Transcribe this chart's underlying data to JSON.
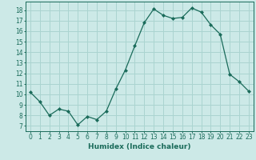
{
  "x": [
    0,
    1,
    2,
    3,
    4,
    5,
    6,
    7,
    8,
    9,
    10,
    11,
    12,
    13,
    14,
    15,
    16,
    17,
    18,
    19,
    20,
    21,
    22,
    23
  ],
  "y": [
    10.2,
    9.3,
    8.0,
    8.6,
    8.4,
    7.1,
    7.9,
    7.6,
    8.4,
    10.5,
    12.3,
    14.6,
    16.8,
    18.1,
    17.5,
    17.2,
    17.3,
    18.2,
    17.8,
    16.6,
    15.7,
    11.9,
    11.2,
    10.3
  ],
  "xlabel": "Humidex (Indice chaleur)",
  "xlim": [
    -0.5,
    23.5
  ],
  "ylim": [
    6.5,
    18.8
  ],
  "yticks": [
    7,
    8,
    9,
    10,
    11,
    12,
    13,
    14,
    15,
    16,
    17,
    18
  ],
  "xticks": [
    0,
    1,
    2,
    3,
    4,
    5,
    6,
    7,
    8,
    9,
    10,
    11,
    12,
    13,
    14,
    15,
    16,
    17,
    18,
    19,
    20,
    21,
    22,
    23
  ],
  "line_color": "#1a6b5a",
  "marker": "D",
  "marker_size": 2.0,
  "bg_color": "#cce9e7",
  "grid_color": "#aad4d0",
  "label_fontsize": 6.5,
  "tick_fontsize": 5.5
}
